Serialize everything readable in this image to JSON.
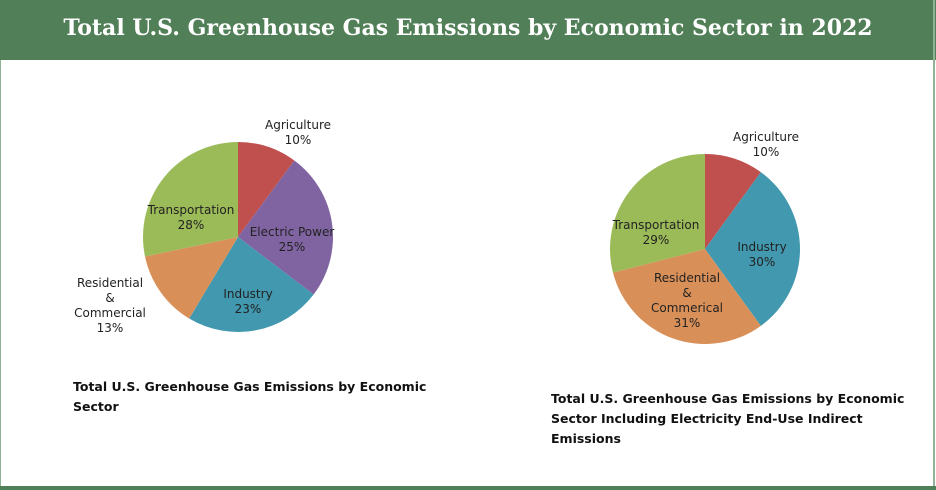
{
  "header": {
    "title": "Total U.S. Greenhouse Gas Emissions by Economic Sector in 2022"
  },
  "colors": {
    "agriculture": "#c0504d",
    "electric": "#8064a2",
    "industry": "#4198af",
    "residential": "#d99058",
    "transportation": "#9bbb59",
    "header": "#517f57"
  },
  "chart_data": [
    {
      "type": "pie",
      "title": "Total U.S. Greenhouse Gas Emissions by Economic Sector",
      "slices": [
        {
          "label": "Agriculture",
          "value": 10,
          "pct": "10%",
          "color": "#c0504d"
        },
        {
          "label": "Electric Power",
          "value": 25,
          "pct": "25%",
          "color": "#8064a2"
        },
        {
          "label": "Industry",
          "value": 23,
          "pct": "23%",
          "color": "#4198af"
        },
        {
          "label": "Residential & Commercial",
          "lines": [
            "Residential",
            "&",
            "Commercial"
          ],
          "value": 13,
          "pct": "13%",
          "color": "#d99058"
        },
        {
          "label": "Transportation",
          "value": 28,
          "pct": "28%",
          "color": "#9bbb59"
        }
      ]
    },
    {
      "type": "pie",
      "title": "Total U.S. Greenhouse Gas Emissions by Economic Sector Including Electricity End-Use Indirect Emissions",
      "slices": [
        {
          "label": "Agriculture",
          "value": 10,
          "pct": "10%",
          "color": "#c0504d"
        },
        {
          "label": "Industry",
          "value": 30,
          "pct": "30%",
          "color": "#4198af"
        },
        {
          "label": "Residential & Commerical",
          "lines": [
            "Residential",
            "&",
            "Commerical"
          ],
          "value": 31,
          "pct": "31%",
          "color": "#d99058"
        },
        {
          "label": "Transportation",
          "value": 29,
          "pct": "29%",
          "color": "#9bbb59"
        }
      ]
    }
  ],
  "captions": {
    "left": [
      "Total U.S. Greenhouse Gas Emissions by Economic",
      "Sector"
    ],
    "right": [
      "Total U.S. Greenhouse Gas Emissions by Economic",
      "Sector Including Electricity End-Use Indirect",
      "Emissions"
    ]
  }
}
